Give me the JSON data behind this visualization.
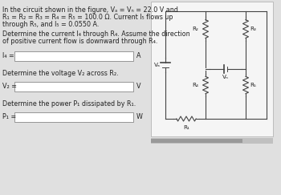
{
  "bg_color": "#e0e0e0",
  "text_color": "#222222",
  "circuit_bg": "#f0f0f0",
  "title_lines": [
    "In the circuit shown in the figure, Vₐ = Vₙ = 22.0 V and",
    "R₁ = R₂ = R₃ = R₄ = R₅ = 100.0 Ω. Current I₅ flows up",
    "through R₅, and I₅ = 0.0550 A."
  ],
  "q1_label": "Determine the current I₄ through R₄. Assume the direction",
  "q1_label2": "of positive current flow is downward through R₄.",
  "i4_prefix": "I₄ =",
  "i4_unit": "A",
  "q2_label": "Determine the voltage V₂ across R₂.",
  "v2_prefix": "V₂ =",
  "v2_unit": "V",
  "q3_label": "Determine the power P₁ dissipated by R₁.",
  "p1_prefix": "P₁ =",
  "p1_unit": "W",
  "Va_label": "Vₐ",
  "Vb_label": "Vₙ",
  "R1_label": "R₁",
  "R2_label": "R₂",
  "R3_label": "R₃",
  "R4_label": "R₄",
  "R5_label": "R₅",
  "wire_color": "#444444",
  "scrollbar_color": "#aaaaaa",
  "scrollbar_thumb": "#888888"
}
